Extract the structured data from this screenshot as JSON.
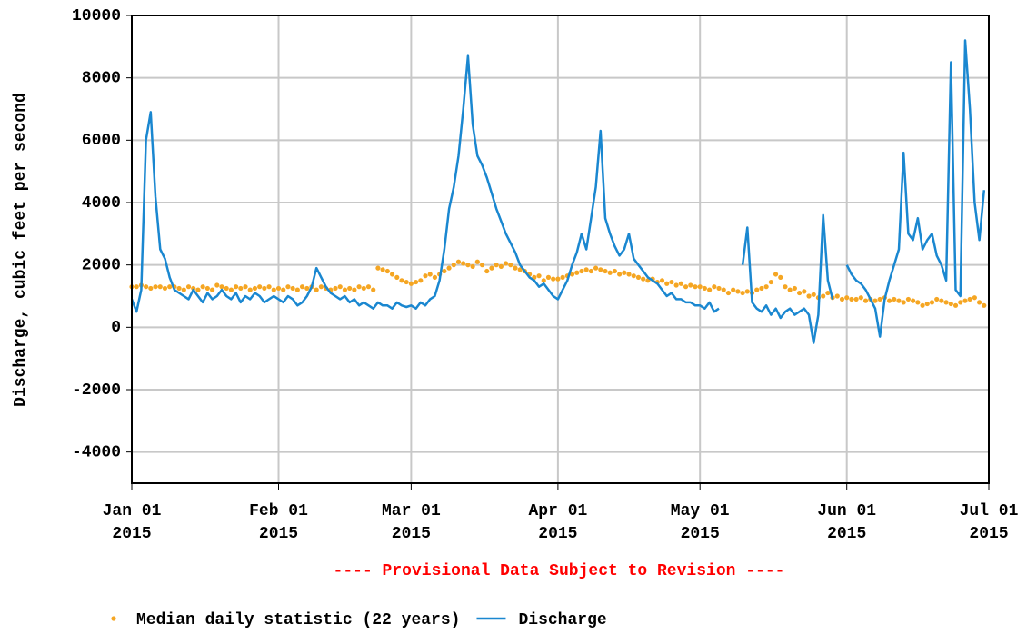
{
  "chart_data": {
    "type": "line",
    "ylabel": "Discharge, cubic feet per second",
    "annotation": "---- Provisional Data Subject to Revision ----",
    "xlim": [
      "2015-01-01",
      "2015-07-01"
    ],
    "xticks": [
      {
        "value": "2015-01-01",
        "label": "Jan 01\n2015"
      },
      {
        "value": "2015-02-01",
        "label": "Feb 01\n2015"
      },
      {
        "value": "2015-03-01",
        "label": "Mar 01\n2015"
      },
      {
        "value": "2015-04-01",
        "label": "Apr 01\n2015"
      },
      {
        "value": "2015-05-01",
        "label": "May 01\n2015"
      },
      {
        "value": "2015-06-01",
        "label": "Jun 01\n2015"
      },
      {
        "value": "2015-07-01",
        "label": "Jul 01\n2015"
      }
    ],
    "ylim": [
      -5000,
      10000
    ],
    "yticks": [
      -4000,
      -2000,
      0,
      2000,
      4000,
      6000,
      8000,
      10000
    ],
    "grid": true,
    "x": [
      "2015-01-01",
      "2015-01-02",
      "2015-01-03",
      "2015-01-04",
      "2015-01-05",
      "2015-01-06",
      "2015-01-07",
      "2015-01-08",
      "2015-01-09",
      "2015-01-10",
      "2015-01-11",
      "2015-01-12",
      "2015-01-13",
      "2015-01-14",
      "2015-01-15",
      "2015-01-16",
      "2015-01-17",
      "2015-01-18",
      "2015-01-19",
      "2015-01-20",
      "2015-01-21",
      "2015-01-22",
      "2015-01-23",
      "2015-01-24",
      "2015-01-25",
      "2015-01-26",
      "2015-01-27",
      "2015-01-28",
      "2015-01-29",
      "2015-01-30",
      "2015-01-31",
      "2015-02-01",
      "2015-02-02",
      "2015-02-03",
      "2015-02-04",
      "2015-02-05",
      "2015-02-06",
      "2015-02-07",
      "2015-02-08",
      "2015-02-09",
      "2015-02-10",
      "2015-02-11",
      "2015-02-12",
      "2015-02-13",
      "2015-02-14",
      "2015-02-15",
      "2015-02-16",
      "2015-02-17",
      "2015-02-18",
      "2015-02-19",
      "2015-02-20",
      "2015-02-21",
      "2015-02-22",
      "2015-02-23",
      "2015-02-24",
      "2015-02-25",
      "2015-02-26",
      "2015-02-27",
      "2015-02-28",
      "2015-03-01",
      "2015-03-02",
      "2015-03-03",
      "2015-03-04",
      "2015-03-05",
      "2015-03-06",
      "2015-03-07",
      "2015-03-08",
      "2015-03-09",
      "2015-03-10",
      "2015-03-11",
      "2015-03-12",
      "2015-03-13",
      "2015-03-14",
      "2015-03-15",
      "2015-03-16",
      "2015-03-17",
      "2015-03-18",
      "2015-03-19",
      "2015-03-20",
      "2015-03-21",
      "2015-03-22",
      "2015-03-23",
      "2015-03-24",
      "2015-03-25",
      "2015-03-26",
      "2015-03-27",
      "2015-03-28",
      "2015-03-29",
      "2015-03-30",
      "2015-03-31",
      "2015-04-01",
      "2015-04-02",
      "2015-04-03",
      "2015-04-04",
      "2015-04-05",
      "2015-04-06",
      "2015-04-07",
      "2015-04-08",
      "2015-04-09",
      "2015-04-10",
      "2015-04-11",
      "2015-04-12",
      "2015-04-13",
      "2015-04-14",
      "2015-04-15",
      "2015-04-16",
      "2015-04-17",
      "2015-04-18",
      "2015-04-19",
      "2015-04-20",
      "2015-04-21",
      "2015-04-22",
      "2015-04-23",
      "2015-04-24",
      "2015-04-25",
      "2015-04-26",
      "2015-04-27",
      "2015-04-28",
      "2015-04-29",
      "2015-04-30",
      "2015-05-01",
      "2015-05-02",
      "2015-05-03",
      "2015-05-04",
      "2015-05-05",
      "2015-05-06",
      "2015-05-07",
      "2015-05-08",
      "2015-05-09",
      "2015-05-10",
      "2015-05-11",
      "2015-05-12",
      "2015-05-13",
      "2015-05-14",
      "2015-05-15",
      "2015-05-16",
      "2015-05-17",
      "2015-05-18",
      "2015-05-19",
      "2015-05-20",
      "2015-05-21",
      "2015-05-22",
      "2015-05-23",
      "2015-05-24",
      "2015-05-25",
      "2015-05-26",
      "2015-05-27",
      "2015-05-28",
      "2015-05-29",
      "2015-05-30",
      "2015-05-31",
      "2015-06-01",
      "2015-06-02",
      "2015-06-03",
      "2015-06-04",
      "2015-06-05",
      "2015-06-06",
      "2015-06-07",
      "2015-06-08",
      "2015-06-09",
      "2015-06-10",
      "2015-06-11",
      "2015-06-12",
      "2015-06-13",
      "2015-06-14",
      "2015-06-15",
      "2015-06-16",
      "2015-06-17",
      "2015-06-18",
      "2015-06-19",
      "2015-06-20",
      "2015-06-21",
      "2015-06-22",
      "2015-06-23",
      "2015-06-24",
      "2015-06-25",
      "2015-06-26",
      "2015-06-27",
      "2015-06-28",
      "2015-06-29",
      "2015-06-30"
    ],
    "series": [
      {
        "name": "Median daily statistic (22 years)",
        "color": "#f5a623",
        "marker": "dot",
        "values": [
          1300,
          1300,
          1350,
          1300,
          1250,
          1300,
          1300,
          1250,
          1300,
          1300,
          1250,
          1200,
          1300,
          1250,
          1200,
          1300,
          1250,
          1200,
          1350,
          1300,
          1250,
          1200,
          1300,
          1250,
          1300,
          1200,
          1250,
          1300,
          1250,
          1300,
          1200,
          1250,
          1200,
          1300,
          1250,
          1200,
          1300,
          1250,
          1300,
          1200,
          1300,
          1250,
          1200,
          1250,
          1300,
          1200,
          1250,
          1200,
          1300,
          1250,
          1300,
          1200,
          1900,
          1850,
          1800,
          1700,
          1600,
          1500,
          1450,
          1400,
          1450,
          1500,
          1650,
          1700,
          1600,
          1700,
          1800,
          1900,
          2000,
          2100,
          2050,
          2000,
          1950,
          2100,
          2000,
          1800,
          1900,
          2000,
          1950,
          2050,
          2000,
          1900,
          1850,
          1800,
          1700,
          1600,
          1650,
          1500,
          1600,
          1550,
          1550,
          1600,
          1650,
          1700,
          1750,
          1800,
          1850,
          1800,
          1900,
          1850,
          1800,
          1750,
          1800,
          1700,
          1750,
          1700,
          1650,
          1600,
          1550,
          1500,
          1550,
          1450,
          1500,
          1400,
          1450,
          1350,
          1400,
          1300,
          1350,
          1300,
          1300,
          1250,
          1200,
          1300,
          1250,
          1200,
          1100,
          1200,
          1150,
          1100,
          1150,
          1100,
          1200,
          1250,
          1300,
          1450,
          1700,
          1600,
          1300,
          1200,
          1250,
          1100,
          1150,
          1000,
          1050,
          950,
          1000,
          1100,
          950,
          1000,
          900,
          950,
          900,
          900,
          950,
          850,
          900,
          850,
          900,
          950,
          850,
          900,
          850,
          800,
          900,
          850,
          800,
          700,
          750,
          800,
          900,
          850,
          800,
          750,
          700,
          800,
          850,
          900,
          950,
          800,
          700
        ]
      },
      {
        "name": "Discharge",
        "color": "#1a87d0",
        "marker": "line",
        "values": [
          900,
          500,
          1200,
          6000,
          6900,
          4200,
          2500,
          2200,
          1600,
          1200,
          1100,
          1000,
          900,
          1200,
          1000,
          800,
          1100,
          900,
          1000,
          1200,
          1000,
          900,
          1100,
          800,
          1000,
          900,
          1100,
          1000,
          800,
          900,
          1000,
          900,
          800,
          1000,
          900,
          700,
          800,
          1000,
          1300,
          1900,
          1600,
          1300,
          1100,
          1000,
          900,
          1000,
          800,
          900,
          700,
          800,
          700,
          600,
          800,
          700,
          700,
          600,
          800,
          700,
          650,
          700,
          600,
          800,
          700,
          900,
          1000,
          1500,
          2500,
          3800,
          4500,
          5500,
          7000,
          8700,
          6500,
          5500,
          5200,
          4800,
          4300,
          3800,
          3400,
          3000,
          2700,
          2400,
          2000,
          1800,
          1600,
          1500,
          1300,
          1400,
          1200,
          1000,
          900,
          1200,
          1500,
          2000,
          2400,
          3000,
          2500,
          3500,
          4500,
          6300,
          3500,
          3000,
          2600,
          2300,
          2500,
          3000,
          2200,
          2000,
          1800,
          1600,
          1500,
          1400,
          1200,
          1000,
          1100,
          900,
          900,
          800,
          800,
          700,
          700,
          600,
          800,
          500,
          600,
          null,
          null,
          null,
          null,
          2000,
          3200,
          800,
          600,
          500,
          700,
          400,
          600,
          300,
          500,
          600,
          400,
          500,
          600,
          400,
          -500,
          400,
          3600,
          1500,
          900,
          null,
          null,
          2000,
          1700,
          1500,
          1400,
          1200,
          900,
          600,
          -300,
          900,
          1500,
          2000,
          2500,
          5600,
          3000,
          2800,
          3500,
          2500,
          2800,
          3000,
          2300,
          2000,
          1500,
          8500,
          1200,
          1000,
          9200,
          7000,
          4000,
          2800,
          4400
        ]
      }
    ]
  }
}
